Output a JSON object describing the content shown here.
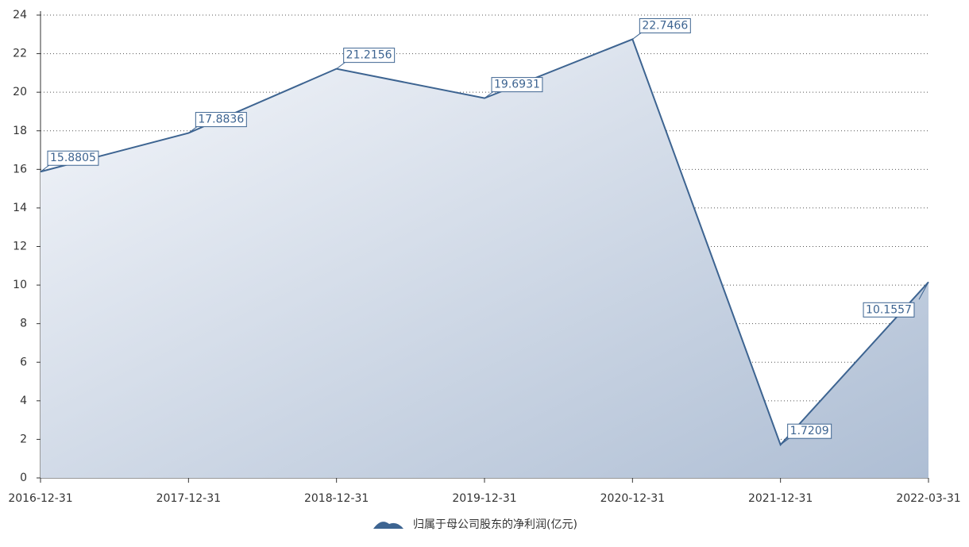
{
  "chart_data": {
    "type": "area",
    "categories": [
      "2016-12-31",
      "2017-12-31",
      "2018-12-31",
      "2019-12-31",
      "2020-12-31",
      "2021-12-31",
      "2022-03-31"
    ],
    "series": [
      {
        "name": "归属于母公司股东的净利润(亿元)",
        "color": "#3d6491",
        "values": [
          15.8805,
          17.8836,
          21.2156,
          19.6931,
          22.7466,
          1.7209,
          10.1557
        ]
      }
    ],
    "ylim": [
      0,
      24
    ],
    "yticks": [
      0,
      2,
      4,
      6,
      8,
      10,
      12,
      14,
      16,
      18,
      20,
      22,
      24
    ],
    "grid": true,
    "legend": "bottom"
  }
}
